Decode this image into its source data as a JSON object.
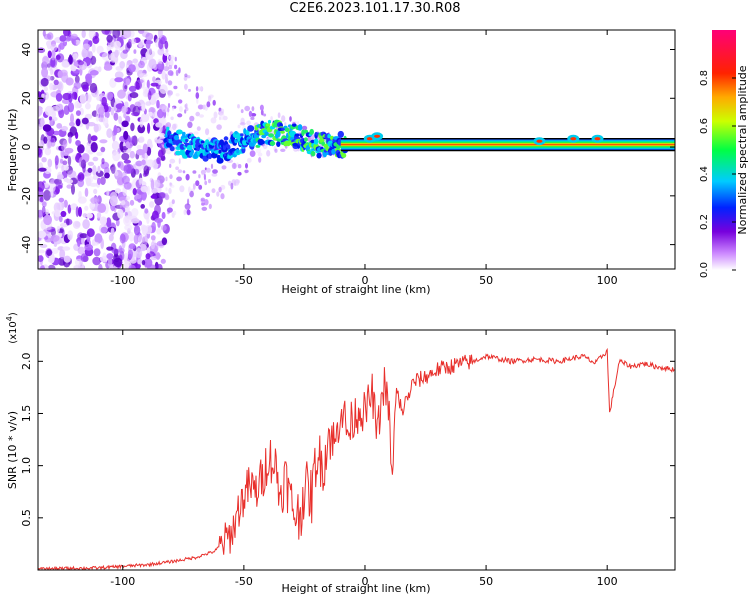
{
  "title": "C2E6.2023.101.17.30.R08",
  "chart_data": [
    {
      "type": "heatmap",
      "xlabel": "Height of straight line (km)",
      "ylabel": "Frequency (Hz)",
      "xlim": [
        -135,
        128
      ],
      "ylim": [
        -50,
        48
      ],
      "x_ticks": [
        -100,
        -50,
        0,
        50,
        100
      ],
      "y_ticks": [
        -40,
        -20,
        0,
        20,
        40
      ],
      "x_tick_labels": [
        "-100",
        "-50",
        "0",
        "50",
        "100"
      ],
      "y_tick_labels": [
        "-40",
        "-20",
        "0",
        "20",
        "40"
      ],
      "colorbar": {
        "label": "Normalized spectral amplitude",
        "range": [
          0,
          1
        ],
        "ticks": [
          0.0,
          0.2,
          0.4,
          0.6,
          0.8
        ],
        "tick_labels": [
          "0.0",
          "0.2",
          "0.4",
          "0.6",
          "0.8"
        ],
        "colormap": "rainbow (white-purple-blue-cyan-green-yellow-orange-red-magenta)"
      },
      "features": {
        "noise_region_km": [
          -135,
          -82
        ],
        "transition_region_km": [
          -82,
          -10
        ],
        "steady_line_region_km": [
          -10,
          128
        ],
        "peak_frequency_hz": [
          [
            -82,
            4
          ],
          [
            -75,
            1
          ],
          [
            -60,
            -2
          ],
          [
            -50,
            3
          ],
          [
            -40,
            6
          ],
          [
            -30,
            5
          ],
          [
            -20,
            1
          ],
          [
            -10,
            1
          ],
          [
            0,
            1
          ],
          [
            20,
            1
          ],
          [
            60,
            1
          ],
          [
            85,
            2
          ],
          [
            100,
            1
          ],
          [
            128,
            1
          ]
        ]
      }
    },
    {
      "type": "line",
      "xlabel": "Height of straight line (km)",
      "ylabel": "SNR (10 * v/v)",
      "y_multiplier_label": "(x10",
      "y_multiplier_exp": "4",
      "y_multiplier_close": ")",
      "xlim": [
        -135,
        128
      ],
      "ylim": [
        0,
        2.3
      ],
      "x_ticks": [
        -100,
        -50,
        0,
        50,
        100
      ],
      "y_ticks": [
        0.5,
        1.0,
        1.5,
        2.0
      ],
      "x_tick_labels": [
        "-100",
        "-50",
        "0",
        "50",
        "100"
      ],
      "y_tick_labels": [
        "0.5",
        "1.0",
        "1.5",
        "2.0"
      ],
      "color": "#e8302c",
      "series": [
        {
          "x": [
            -135,
            -110,
            -90,
            -80,
            -70,
            -62,
            -55,
            -52,
            -48,
            -45,
            -42,
            -40,
            -37,
            -35,
            -33,
            -30,
            -27,
            -25,
            -22,
            -20,
            -17,
            -15,
            -12,
            -10,
            -7,
            -5,
            -2,
            0,
            3,
            5,
            8,
            10,
            11,
            13,
            15,
            20,
            25,
            30,
            35,
            40,
            45,
            50,
            60,
            70,
            80,
            90,
            95,
            100,
            101,
            105,
            110,
            115,
            120,
            128
          ],
          "y": [
            0.01,
            0.02,
            0.05,
            0.08,
            0.12,
            0.18,
            0.35,
            0.6,
            0.8,
            0.75,
            0.9,
            1.1,
            1.0,
            0.7,
            0.9,
            0.6,
            0.5,
            0.8,
            0.7,
            1.1,
            1.0,
            1.3,
            1.2,
            1.6,
            1.3,
            1.45,
            1.55,
            1.5,
            1.7,
            1.3,
            1.8,
            1.5,
            0.85,
            1.7,
            1.5,
            1.8,
            1.85,
            1.92,
            1.95,
            1.98,
            2.0,
            2.05,
            2.0,
            2.02,
            2.0,
            2.05,
            1.98,
            2.1,
            1.5,
            2.0,
            1.95,
            1.98,
            1.95,
            1.92
          ]
        }
      ]
    }
  ]
}
